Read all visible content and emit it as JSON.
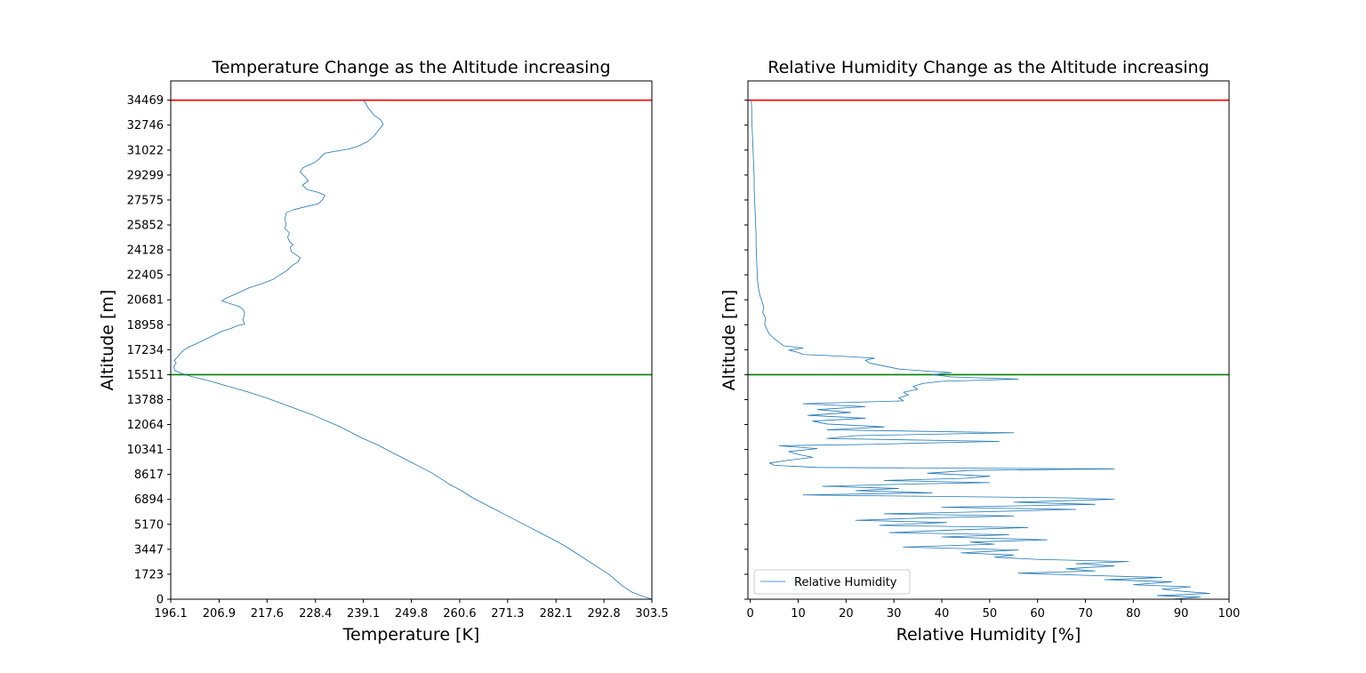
{
  "chart_data": [
    {
      "type": "line",
      "title": "Temperature Change as the Altitude increasing",
      "xlabel": "Temperature [K]",
      "ylabel": "Altitude [m]",
      "xlim": [
        196.1,
        303.5
      ],
      "ylim": [
        0,
        35800
      ],
      "x_ticks": [
        "196.1",
        "206.9",
        "217.6",
        "228.4",
        "239.1",
        "249.8",
        "260.6",
        "271.3",
        "282.1",
        "292.8",
        "303.5"
      ],
      "y_ticks": [
        "0",
        "1723",
        "3447",
        "5170",
        "6894",
        "8617",
        "10341",
        "12064",
        "13788",
        "15511",
        "17234",
        "18958",
        "20681",
        "22405",
        "24128",
        "25852",
        "27575",
        "29299",
        "31022",
        "32746",
        "34469"
      ],
      "grid": false,
      "hlines": [
        {
          "y": 34469,
          "color": "#ff0000"
        },
        {
          "y": 15511,
          "color": "#008000"
        }
      ],
      "series": [
        {
          "color": "#1f77b4",
          "points": [
            [
              303.5,
              0
            ],
            [
              301.5,
              200
            ],
            [
              299.0,
              500
            ],
            [
              297.0,
              900
            ],
            [
              295.5,
              1300
            ],
            [
              294.0,
              1700
            ],
            [
              292.0,
              2100
            ],
            [
              290.0,
              2500
            ],
            [
              288.0,
              2900
            ],
            [
              286.0,
              3300
            ],
            [
              284.0,
              3700
            ],
            [
              281.0,
              4200
            ],
            [
              278.5,
              4600
            ],
            [
              276.0,
              5000
            ],
            [
              273.5,
              5400
            ],
            [
              271.0,
              5800
            ],
            [
              268.5,
              6200
            ],
            [
              266.0,
              6600
            ],
            [
              263.5,
              7000
            ],
            [
              261.0,
              7500
            ],
            [
              258.5,
              7900
            ],
            [
              256.5,
              8300
            ],
            [
              254.5,
              8700
            ],
            [
              252.0,
              9100
            ],
            [
              249.5,
              9500
            ],
            [
              247.0,
              9900
            ],
            [
              244.5,
              10300
            ],
            [
              242.0,
              10700
            ],
            [
              239.0,
              11100
            ],
            [
              236.5,
              11500
            ],
            [
              234.0,
              11900
            ],
            [
              231.0,
              12300
            ],
            [
              228.0,
              12700
            ],
            [
              224.5,
              13100
            ],
            [
              221.0,
              13500
            ],
            [
              217.5,
              13900
            ],
            [
              213.5,
              14300
            ],
            [
              209.0,
              14700
            ],
            [
              204.5,
              15100
            ],
            [
              200.5,
              15400
            ],
            [
              198.5,
              15600
            ],
            [
              197.0,
              15800
            ],
            [
              196.8,
              16100
            ],
            [
              197.3,
              16300
            ],
            [
              196.9,
              16500
            ],
            [
              197.8,
              16800
            ],
            [
              198.3,
              17000
            ],
            [
              199.0,
              17200
            ],
            [
              200.0,
              17400
            ],
            [
              201.5,
              17600
            ],
            [
              203.5,
              17900
            ],
            [
              205.5,
              18200
            ],
            [
              207.5,
              18500
            ],
            [
              209.5,
              18700
            ],
            [
              211.0,
              18900
            ],
            [
              212.6,
              19000
            ],
            [
              212.2,
              19300
            ],
            [
              212.6,
              19700
            ],
            [
              212.3,
              20000
            ],
            [
              211.5,
              20200
            ],
            [
              209.5,
              20400
            ],
            [
              207.5,
              20600
            ],
            [
              208.5,
              20800
            ],
            [
              210.0,
              21000
            ],
            [
              211.5,
              21200
            ],
            [
              213.5,
              21500
            ],
            [
              216.5,
              21800
            ],
            [
              219.0,
              22100
            ],
            [
              220.5,
              22400
            ],
            [
              222.0,
              22700
            ],
            [
              223.0,
              23000
            ],
            [
              224.5,
              23300
            ],
            [
              225.0,
              23600
            ],
            [
              224.0,
              23800
            ],
            [
              223.0,
              24000
            ],
            [
              222.8,
              24300
            ],
            [
              223.4,
              24500
            ],
            [
              222.6,
              24700
            ],
            [
              222.2,
              25000
            ],
            [
              222.6,
              25300
            ],
            [
              221.6,
              25600
            ],
            [
              221.8,
              25900
            ],
            [
              221.6,
              26300
            ],
            [
              221.9,
              26700
            ],
            [
              223.5,
              26900
            ],
            [
              226.0,
              27100
            ],
            [
              229.0,
              27300
            ],
            [
              230.0,
              27600
            ],
            [
              230.5,
              27900
            ],
            [
              229.0,
              28100
            ],
            [
              226.5,
              28300
            ],
            [
              225.5,
              28600
            ],
            [
              226.8,
              28900
            ],
            [
              226.0,
              29200
            ],
            [
              225.0,
              29500
            ],
            [
              225.6,
              29800
            ],
            [
              227.0,
              30000
            ],
            [
              228.4,
              30200
            ],
            [
              229.2,
              30400
            ],
            [
              229.8,
              30600
            ],
            [
              230.4,
              30800
            ],
            [
              233.0,
              30950
            ],
            [
              236.0,
              31100
            ],
            [
              238.0,
              31300
            ],
            [
              240.0,
              31600
            ],
            [
              241.5,
              32000
            ],
            [
              242.5,
              32400
            ],
            [
              243.5,
              32800
            ],
            [
              243.0,
              33100
            ],
            [
              241.6,
              33400
            ],
            [
              240.8,
              33700
            ],
            [
              240.0,
              34000
            ],
            [
              239.6,
              34300
            ],
            [
              239.0,
              34469
            ]
          ]
        }
      ]
    },
    {
      "type": "line",
      "title": "Relative Humidity Change as the Altitude increasing",
      "xlabel": "Relative Humidity [%]",
      "ylabel": "Altitude [m]",
      "xlim": [
        -0.5,
        100
      ],
      "ylim": [
        0,
        35800
      ],
      "x_ticks": [
        "0",
        "10",
        "20",
        "30",
        "40",
        "50",
        "60",
        "70",
        "80",
        "90",
        "100"
      ],
      "grid": false,
      "legend": {
        "position": "lower-left",
        "entries": [
          "Relative Humidity"
        ]
      },
      "hlines": [
        {
          "y": 34469,
          "color": "#ff0000"
        },
        {
          "y": 15511,
          "color": "#008000"
        }
      ],
      "series": [
        {
          "name": "Relative Humidity",
          "color": "#1f77b4",
          "points": [
            [
              88,
              0
            ],
            [
              94,
              150
            ],
            [
              85,
              250
            ],
            [
              96,
              400
            ],
            [
              90,
              550
            ],
            [
              86,
              700
            ],
            [
              92,
              850
            ],
            [
              80,
              1000
            ],
            [
              88,
              1200
            ],
            [
              74,
              1350
            ],
            [
              86,
              1500
            ],
            [
              70,
              1650
            ],
            [
              56,
              1800
            ],
            [
              72,
              1950
            ],
            [
              66,
              2100
            ],
            [
              76,
              2300
            ],
            [
              68,
              2450
            ],
            [
              79,
              2600
            ],
            [
              60,
              2750
            ],
            [
              51,
              2900
            ],
            [
              55,
              3050
            ],
            [
              44,
              3200
            ],
            [
              56,
              3400
            ],
            [
              32,
              3600
            ],
            [
              51,
              3800
            ],
            [
              46,
              3950
            ],
            [
              62,
              4100
            ],
            [
              40,
              4300
            ],
            [
              54,
              4450
            ],
            [
              29,
              4600
            ],
            [
              44,
              4800
            ],
            [
              58,
              4950
            ],
            [
              27,
              5100
            ],
            [
              41,
              5300
            ],
            [
              22,
              5450
            ],
            [
              35,
              5600
            ],
            [
              55,
              5750
            ],
            [
              28,
              5900
            ],
            [
              50,
              6050
            ],
            [
              68,
              6200
            ],
            [
              40,
              6350
            ],
            [
              72,
              6550
            ],
            [
              55,
              6700
            ],
            [
              76,
              6900
            ],
            [
              66,
              7000
            ],
            [
              11,
              7200
            ],
            [
              38,
              7350
            ],
            [
              22,
              7500
            ],
            [
              31,
              7650
            ],
            [
              15,
              7800
            ],
            [
              33,
              7950
            ],
            [
              50,
              8050
            ],
            [
              28,
              8200
            ],
            [
              45,
              8350
            ],
            [
              50,
              8500
            ],
            [
              37,
              8700
            ],
            [
              46,
              8900
            ],
            [
              76,
              9000
            ],
            [
              14,
              9100
            ],
            [
              5,
              9250
            ],
            [
              4,
              9400
            ],
            [
              8,
              9600
            ],
            [
              13,
              9800
            ],
            [
              10,
              10000
            ],
            [
              8,
              10200
            ],
            [
              14,
              10400
            ],
            [
              6,
              10600
            ],
            [
              26,
              10700
            ],
            [
              38,
              10800
            ],
            [
              52,
              10900
            ],
            [
              16,
              11100
            ],
            [
              22,
              11300
            ],
            [
              55,
              11500
            ],
            [
              16,
              11700
            ],
            [
              28,
              11900
            ],
            [
              16,
              12100
            ],
            [
              13,
              12300
            ],
            [
              24,
              12500
            ],
            [
              12,
              12700
            ],
            [
              21,
              12900
            ],
            [
              14,
              13100
            ],
            [
              24,
              13300
            ],
            [
              11,
              13500
            ],
            [
              32,
              13700
            ],
            [
              31,
              13900
            ],
            [
              33,
              14100
            ],
            [
              32,
              14300
            ],
            [
              35,
              14500
            ],
            [
              34,
              14700
            ],
            [
              36,
              14900
            ],
            [
              40,
              15050
            ],
            [
              56,
              15200
            ],
            [
              42,
              15350
            ],
            [
              38,
              15511
            ],
            [
              42,
              15650
            ],
            [
              37,
              15750
            ],
            [
              31,
              15900
            ],
            [
              28,
              16100
            ],
            [
              25,
              16300
            ],
            [
              24,
              16500
            ],
            [
              26,
              16650
            ],
            [
              18,
              16800
            ],
            [
              11,
              16900
            ],
            [
              10,
              17050
            ],
            [
              8,
              17200
            ],
            [
              11,
              17350
            ],
            [
              7,
              17500
            ],
            [
              6,
              17750
            ],
            [
              5,
              18000
            ],
            [
              4,
              18300
            ],
            [
              3.5,
              18600
            ],
            [
              3,
              19000
            ],
            [
              3.2,
              19400
            ],
            [
              2.6,
              19800
            ],
            [
              2.8,
              20200
            ],
            [
              2.4,
              20600
            ],
            [
              2.0,
              21000
            ],
            [
              1.7,
              21500
            ],
            [
              1.5,
              22000
            ],
            [
              1.4,
              22800
            ],
            [
              1.3,
              23600
            ],
            [
              1.2,
              24400
            ],
            [
              1.2,
              25200
            ],
            [
              1.1,
              26000
            ],
            [
              1.0,
              26800
            ],
            [
              0.9,
              27600
            ],
            [
              0.8,
              28400
            ],
            [
              0.8,
              29200
            ],
            [
              0.7,
              30000
            ],
            [
              0.6,
              30800
            ],
            [
              0.5,
              31600
            ],
            [
              0.4,
              32400
            ],
            [
              0.3,
              33200
            ],
            [
              0.3,
              33800
            ],
            [
              0.2,
              34469
            ]
          ]
        }
      ]
    }
  ]
}
